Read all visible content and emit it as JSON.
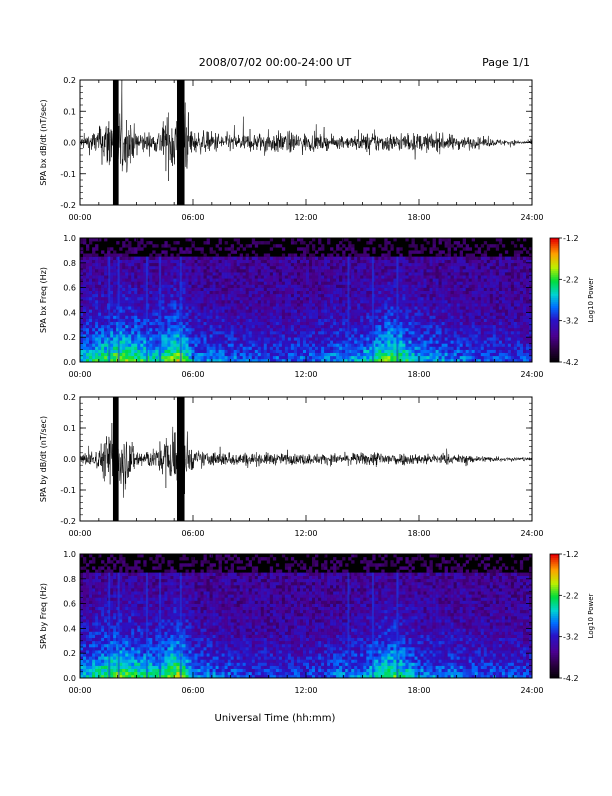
{
  "header": {
    "title": "2008/07/02  00:00-24:00 UT",
    "page": "Page 1/1"
  },
  "footer": {
    "xlabel": "Universal Time (hh:mm)"
  },
  "chart_data": [
    {
      "type": "line",
      "ylabel": "SPA bx dB/dt (nT/sec)",
      "xlim": [
        0,
        24
      ],
      "ylim": [
        -0.2,
        0.2
      ],
      "xticks": [
        "00:00",
        "06:00",
        "12:00",
        "18:00",
        "24:00"
      ],
      "yticks": [
        "-0.2",
        "-0.1",
        "0.0",
        "0.1",
        "0.2"
      ],
      "series": [
        {
          "x": [
            0,
            1,
            1.8,
            2.2,
            3,
            4,
            5,
            5.5,
            6,
            7,
            8,
            9,
            10,
            11,
            12,
            13,
            14,
            15,
            15.5,
            16,
            17,
            18,
            19,
            20,
            21,
            22,
            23,
            24
          ],
          "amplitude": [
            0.03,
            0.08,
            0.22,
            0.2,
            0.07,
            0.05,
            0.22,
            0.22,
            0.06,
            0.06,
            0.05,
            0.05,
            0.06,
            0.06,
            0.05,
            0.04,
            0.03,
            0.05,
            0.06,
            0.05,
            0.05,
            0.05,
            0.05,
            0.04,
            0.03,
            0.02,
            0.015,
            0.01
          ]
        }
      ]
    },
    {
      "type": "heatmap",
      "ylabel": "SPA bx Freq (Hz)",
      "xlim": [
        0,
        24
      ],
      "ylim": [
        0,
        1.0
      ],
      "xticks": [
        "00:00",
        "06:00",
        "12:00",
        "18:00",
        "24:00"
      ],
      "yticks": [
        "0.0",
        "0.2",
        "0.4",
        "0.6",
        "0.8",
        "1.0"
      ],
      "colorbar": {
        "label": "Log10 Power",
        "min": -4.2,
        "max": -1.2,
        "ticks": [
          "-1.2",
          "-2.2",
          "-3.2",
          "-4.2"
        ]
      },
      "activity_x": [
        0,
        2,
        4,
        5.3,
        6,
        9,
        12,
        15,
        16.5,
        18,
        21,
        24
      ],
      "activity_level": [
        0.45,
        0.75,
        0.55,
        0.85,
        0.4,
        0.3,
        0.3,
        0.45,
        0.75,
        0.45,
        0.3,
        0.25
      ]
    },
    {
      "type": "line",
      "ylabel": "SPA by dB/dt (nT/sec)",
      "xlim": [
        0,
        24
      ],
      "ylim": [
        -0.2,
        0.2
      ],
      "xticks": [
        "00:00",
        "06:00",
        "12:00",
        "18:00",
        "24:00"
      ],
      "yticks": [
        "-0.2",
        "-0.1",
        "0.0",
        "0.1",
        "0.2"
      ],
      "series": [
        {
          "x": [
            0,
            1,
            1.8,
            2.2,
            3,
            4,
            5,
            5.5,
            6,
            7,
            8,
            9,
            10,
            11,
            12,
            13,
            14,
            15,
            16,
            16.5,
            17,
            18,
            19,
            20,
            21,
            22,
            23,
            24
          ],
          "amplitude": [
            0.03,
            0.06,
            0.22,
            0.2,
            0.06,
            0.05,
            0.22,
            0.22,
            0.05,
            0.04,
            0.04,
            0.035,
            0.035,
            0.03,
            0.03,
            0.03,
            0.03,
            0.035,
            0.045,
            0.04,
            0.035,
            0.03,
            0.03,
            0.025,
            0.02,
            0.015,
            0.012,
            0.01
          ]
        }
      ]
    },
    {
      "type": "heatmap",
      "ylabel": "SPA by Freq (Hz)",
      "xlim": [
        0,
        24
      ],
      "ylim": [
        0,
        1.0
      ],
      "xticks": [
        "00:00",
        "06:00",
        "12:00",
        "18:00",
        "24:00"
      ],
      "yticks": [
        "0.0",
        "0.2",
        "0.4",
        "0.6",
        "0.8",
        "1.0"
      ],
      "colorbar": {
        "label": "Log10 Power",
        "min": -4.2,
        "max": -1.2,
        "ticks": [
          "-1.2",
          "-2.2",
          "-3.2",
          "-4.2"
        ]
      },
      "activity_x": [
        0,
        2,
        4,
        5.3,
        6,
        9,
        12,
        15,
        16.5,
        18,
        21,
        24
      ],
      "activity_level": [
        0.45,
        0.75,
        0.55,
        0.85,
        0.4,
        0.25,
        0.25,
        0.4,
        0.7,
        0.4,
        0.3,
        0.25
      ]
    }
  ]
}
